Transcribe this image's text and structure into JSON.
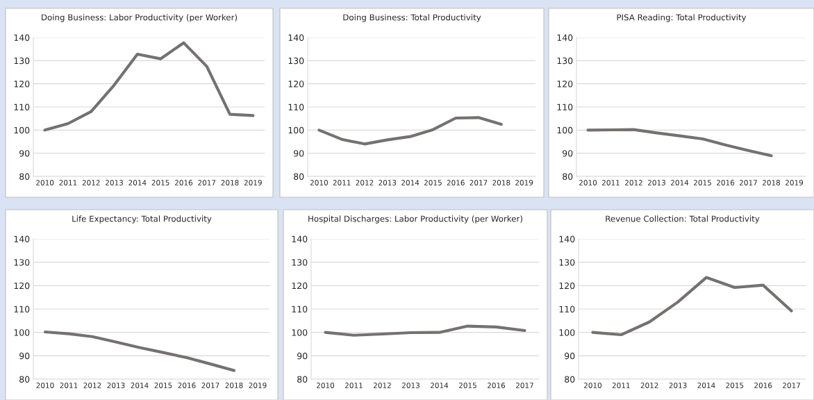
{
  "chart_data": [
    {
      "type": "line",
      "title": "Doing Business: Labor Productivity (per Worker)",
      "categories": [
        "2010",
        "2011",
        "2012",
        "2013",
        "2014",
        "2015",
        "2016",
        "2017",
        "2018",
        "2019"
      ],
      "series": [
        {
          "color": "#767171",
          "values": [
            100,
            102.8,
            108,
            119.5,
            132.8,
            130.8,
            137.7,
            127.5,
            106.8,
            106.3
          ]
        }
      ],
      "ylim": [
        80,
        140
      ],
      "yticks": [
        80,
        90,
        100,
        110,
        120,
        130,
        140
      ],
      "grid": "y",
      "line_style": "solid"
    },
    {
      "type": "line",
      "title": "Doing Business: Total Productivity",
      "categories": [
        "2010",
        "2011",
        "2012",
        "2013",
        "2014",
        "2015",
        "2016",
        "2017",
        "2018",
        "2019"
      ],
      "series": [
        {
          "color": "#767171",
          "values": [
            100,
            96,
            94,
            95.8,
            97.2,
            100.2,
            105.2,
            105.4,
            102.5,
            null
          ]
        }
      ],
      "ylim": [
        80,
        140
      ],
      "yticks": [
        80,
        90,
        100,
        110,
        120,
        130,
        140
      ],
      "grid": "y",
      "line_style": "solid"
    },
    {
      "type": "line",
      "title": "PISA Reading: Total Productivity",
      "categories": [
        "2010",
        "2011",
        "2012",
        "2013",
        "2014",
        "2015",
        "2016",
        "2017",
        "2018",
        "2019"
      ],
      "series": [
        {
          "color": "#767171",
          "values": [
            100,
            100.1,
            100.2,
            98.8,
            97.5,
            96.2,
            93.6,
            91.2,
            88.9,
            null
          ]
        }
      ],
      "ylim": [
        80,
        140
      ],
      "yticks": [
        80,
        90,
        100,
        110,
        120,
        130,
        140
      ],
      "grid": "y",
      "line_style": "solid"
    },
    {
      "type": "line",
      "title": "Life Expectancy: Total Productivity",
      "categories": [
        "2010",
        "2011",
        "2012",
        "2013",
        "2014",
        "2015",
        "2016",
        "2017",
        "2018",
        "2019"
      ],
      "series": [
        {
          "color": "#767171",
          "values": [
            100.2,
            99.4,
            98.2,
            95.9,
            93.5,
            91.4,
            89.2,
            86.5,
            83.7,
            null
          ]
        }
      ],
      "ylim": [
        80,
        140
      ],
      "yticks": [
        80,
        90,
        100,
        110,
        120,
        130,
        140
      ],
      "grid": "y",
      "line_style": "solid"
    },
    {
      "type": "line",
      "title": "Hospital Discharges: Labor Productivity (per Worker)",
      "categories": [
        "2010",
        "2011",
        "2012",
        "2013",
        "2014",
        "2015",
        "2016",
        "2017"
      ],
      "series": [
        {
          "color": "#767171",
          "values": [
            100,
            98.8,
            99.3,
            99.9,
            100,
            102.7,
            102.3,
            100.8
          ]
        }
      ],
      "ylim": [
        80,
        140
      ],
      "yticks": [
        80,
        90,
        100,
        110,
        120,
        130,
        140
      ],
      "grid": "y",
      "line_style": "solid"
    },
    {
      "type": "line",
      "title": "Revenue Collection: Total Productivity",
      "categories": [
        "2010",
        "2011",
        "2012",
        "2013",
        "2014",
        "2015",
        "2016",
        "2017"
      ],
      "series": [
        {
          "color": "#767171",
          "values": [
            100,
            99,
            104.5,
            113,
            123.5,
            119.2,
            120.2,
            109.2
          ]
        }
      ],
      "ylim": [
        80,
        140
      ],
      "yticks": [
        80,
        90,
        100,
        110,
        120,
        130,
        140
      ],
      "grid": "y",
      "line_style": "solid"
    }
  ]
}
